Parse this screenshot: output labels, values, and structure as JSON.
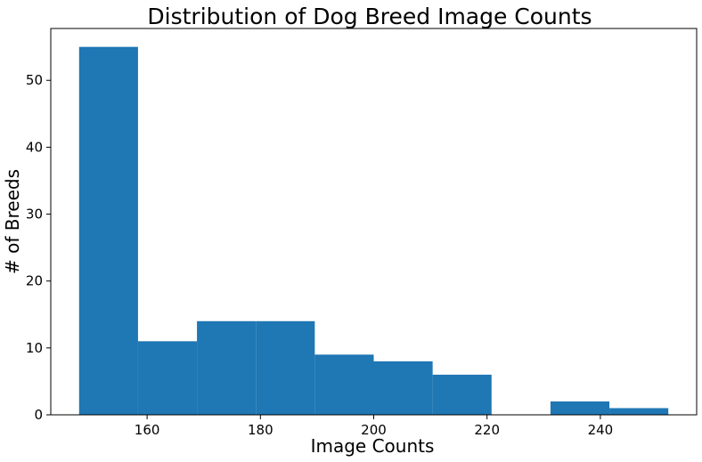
{
  "chart_data": {
    "type": "bar",
    "subtype": "histogram",
    "title": "Distribution of Dog Breed Image Counts",
    "xlabel": "Image Counts",
    "ylabel": "# of Breeds",
    "xlim": [
      143,
      257
    ],
    "ylim": [
      0,
      57.75
    ],
    "x_ticks": [
      160,
      180,
      200,
      220,
      240
    ],
    "y_ticks": [
      0,
      10,
      20,
      30,
      40,
      50
    ],
    "grid": false,
    "color": "#1f77b4",
    "bins": [
      {
        "start": 148,
        "end": 158.4,
        "count": 55
      },
      {
        "start": 158.4,
        "end": 168.8,
        "count": 11
      },
      {
        "start": 168.8,
        "end": 179.2,
        "count": 14
      },
      {
        "start": 179.2,
        "end": 189.6,
        "count": 14
      },
      {
        "start": 189.6,
        "end": 200.0,
        "count": 9
      },
      {
        "start": 200.0,
        "end": 210.4,
        "count": 8
      },
      {
        "start": 210.4,
        "end": 220.8,
        "count": 6
      },
      {
        "start": 220.8,
        "end": 231.2,
        "count": 0
      },
      {
        "start": 231.2,
        "end": 241.6,
        "count": 2
      },
      {
        "start": 241.6,
        "end": 252.0,
        "count": 1
      }
    ]
  }
}
